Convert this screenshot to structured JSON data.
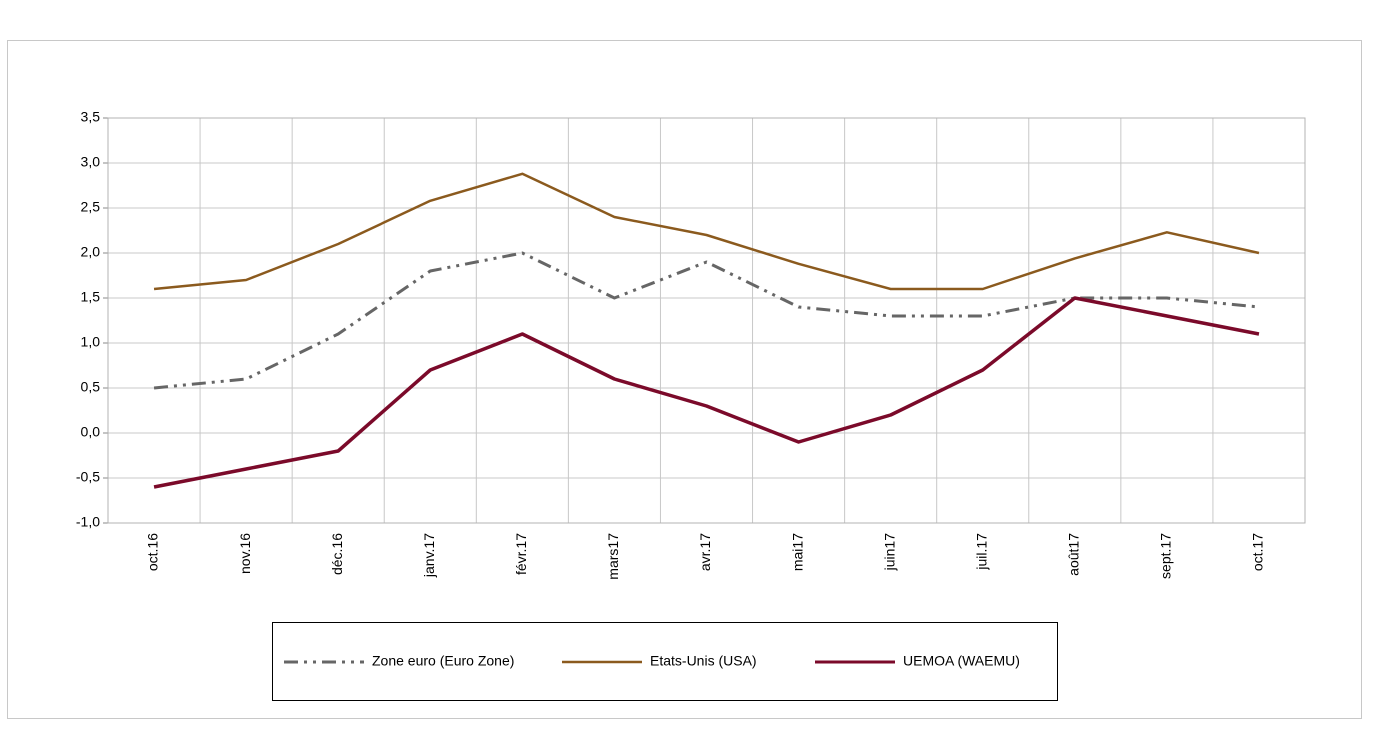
{
  "chart_data": {
    "type": "line",
    "categories": [
      "oct.16",
      "nov.16",
      "déc.16",
      "janv.17",
      "févr.17",
      "mars17",
      "avr.17",
      "mai17",
      "juin17",
      "juil.17",
      "août17",
      "sept.17",
      "oct.17"
    ],
    "series": [
      {
        "name": "Zone euro (Euro Zone)",
        "color": "#666666",
        "dash": "dash-dot-dot",
        "values": [
          0.5,
          0.6,
          1.1,
          1.8,
          2.0,
          1.5,
          1.9,
          1.4,
          1.3,
          1.3,
          1.5,
          1.5,
          1.4
        ]
      },
      {
        "name": "Etats-Unis (USA)",
        "color": "#8b5a1e",
        "values": [
          1.6,
          1.7,
          2.1,
          2.58,
          2.88,
          2.4,
          2.2,
          1.88,
          1.6,
          1.6,
          1.94,
          2.23,
          2.0
        ]
      },
      {
        "name": "UEMOA (WAEMU)",
        "color": "#7b0a2a",
        "values": [
          -0.6,
          -0.4,
          -0.2,
          0.7,
          1.1,
          0.6,
          0.3,
          -0.1,
          0.2,
          0.7,
          1.5,
          1.3,
          1.1
        ]
      }
    ],
    "ylim": [
      -1.0,
      3.5
    ],
    "yticks": [
      {
        "value": -1.0,
        "label": "-1,0"
      },
      {
        "value": -0.5,
        "label": "-0,5"
      },
      {
        "value": 0,
        "label": "0,0"
      },
      {
        "value": 0.5,
        "label": "0,5"
      },
      {
        "value": 1.0,
        "label": "1,0"
      },
      {
        "value": 1.5,
        "label": "1,5"
      },
      {
        "value": 2.0,
        "label": "2,0"
      },
      {
        "value": 2.5,
        "label": "2,5"
      },
      {
        "value": 3.0,
        "label": "3,0"
      },
      {
        "value": 3.5,
        "label": "3,5"
      }
    ],
    "grid": true,
    "legend": "bottom"
  }
}
